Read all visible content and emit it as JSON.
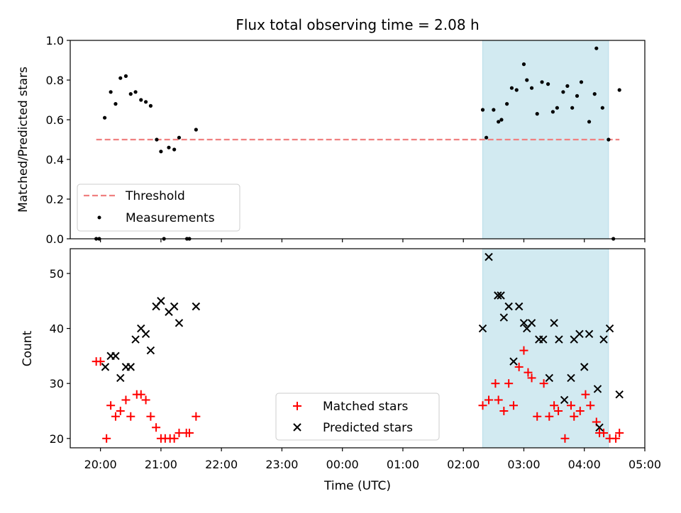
{
  "figure": {
    "title": "Flux total observing time = 2.08 h",
    "x_label": "Time (UTC)",
    "x_ticks": [
      "20:00",
      "21:00",
      "22:00",
      "23:00",
      "00:00",
      "01:00",
      "02:00",
      "03:00",
      "04:00",
      "05:00"
    ]
  },
  "chart_data": [
    {
      "type": "scatter",
      "ylabel": "Matched/Predicted stars",
      "xlim": [
        19.5,
        29.0
      ],
      "ylim": [
        0.0,
        1.0
      ],
      "yticks": [
        "0.0",
        "0.2",
        "0.4",
        "0.6",
        "0.8",
        "1.0"
      ],
      "shaded_span": {
        "x_start": 26.32,
        "x_end": 28.4,
        "color": "#add8e6"
      },
      "legend": {
        "placement": "lower-left",
        "entries": [
          "Threshold",
          "Measurements"
        ]
      },
      "threshold": {
        "name": "Threshold",
        "x_start": 19.93,
        "x_end": 28.58,
        "y": 0.5,
        "color": "#f08080"
      },
      "series": [
        {
          "name": "Measurements",
          "color": "#000000",
          "marker": "dot",
          "x": [
            19.93,
            19.98,
            20.07,
            20.17,
            20.25,
            20.33,
            20.42,
            20.5,
            20.58,
            20.67,
            20.75,
            20.83,
            20.93,
            21.0,
            21.05,
            21.13,
            21.22,
            21.3,
            21.43,
            21.47,
            21.58,
            26.32,
            26.38,
            26.5,
            26.58,
            26.63,
            26.72,
            26.8,
            26.88,
            27.0,
            27.05,
            27.13,
            27.22,
            27.3,
            27.4,
            27.48,
            27.55,
            27.65,
            27.72,
            27.8,
            27.88,
            27.95,
            28.08,
            28.17,
            28.2,
            28.3,
            28.4,
            28.48,
            28.58
          ],
          "y": [
            0.0,
            0.0,
            0.61,
            0.74,
            0.68,
            0.81,
            0.82,
            0.73,
            0.74,
            0.7,
            0.69,
            0.67,
            0.5,
            0.44,
            0.0,
            0.46,
            0.45,
            0.51,
            0.0,
            0.0,
            0.55,
            0.65,
            0.51,
            0.65,
            0.59,
            0.6,
            0.68,
            0.76,
            0.75,
            0.88,
            0.8,
            0.76,
            0.63,
            0.79,
            0.78,
            0.64,
            0.66,
            0.74,
            0.77,
            0.66,
            0.72,
            0.79,
            0.59,
            0.73,
            0.96,
            0.66,
            0.5,
            0.0,
            0.75
          ]
        }
      ]
    },
    {
      "type": "scatter",
      "ylabel": "Count",
      "xlim": [
        19.5,
        29.0
      ],
      "ylim": [
        18.3,
        54.5
      ],
      "yticks": [
        "20",
        "30",
        "40",
        "50"
      ],
      "shaded_span": {
        "x_start": 26.32,
        "x_end": 28.4,
        "color": "#add8e6"
      },
      "legend": {
        "placement": "lower-center",
        "entries": [
          "Matched stars",
          "Predicted stars"
        ]
      },
      "series": [
        {
          "name": "Matched stars",
          "color": "#ff0000",
          "marker": "plus",
          "x": [
            19.93,
            20.0,
            20.1,
            20.17,
            20.25,
            20.33,
            20.42,
            20.5,
            20.6,
            20.67,
            20.75,
            20.83,
            20.92,
            21.0,
            21.07,
            21.15,
            21.22,
            21.3,
            21.42,
            21.47,
            21.58,
            26.32,
            26.42,
            26.53,
            26.58,
            26.67,
            26.75,
            26.83,
            26.92,
            27.0,
            27.07,
            27.13,
            27.22,
            27.33,
            27.42,
            27.5,
            27.57,
            27.68,
            27.78,
            27.83,
            27.93,
            28.02,
            28.1,
            28.2,
            28.25,
            28.32,
            28.42,
            28.52,
            28.58
          ],
          "y": [
            34,
            34,
            20,
            26,
            24,
            25,
            27,
            24,
            28,
            28,
            27,
            24,
            22,
            20,
            20,
            20,
            20,
            21,
            21,
            21,
            24,
            26,
            27,
            30,
            27,
            25,
            30,
            26,
            33,
            36,
            32,
            31,
            24,
            30,
            24,
            26,
            25,
            20,
            26,
            24,
            25,
            28,
            26,
            23,
            21,
            21,
            20,
            20,
            21
          ]
        },
        {
          "name": "Predicted stars",
          "color": "#000000",
          "marker": "x",
          "x": [
            20.08,
            20.17,
            20.25,
            20.33,
            20.42,
            20.5,
            20.58,
            20.67,
            20.75,
            20.83,
            20.92,
            21.0,
            21.13,
            21.22,
            21.3,
            21.58,
            26.32,
            26.42,
            26.57,
            26.62,
            26.67,
            26.75,
            26.83,
            26.92,
            27.0,
            27.05,
            27.13,
            27.25,
            27.32,
            27.42,
            27.5,
            27.58,
            27.67,
            27.78,
            27.83,
            27.92,
            28.0,
            28.08,
            28.22,
            28.25,
            28.32,
            28.42,
            28.58
          ],
          "y": [
            33,
            35,
            35,
            31,
            33,
            33,
            38,
            40,
            39,
            36,
            44,
            45,
            43,
            44,
            41,
            44,
            40,
            53,
            46,
            46,
            42,
            44,
            34,
            44,
            41,
            40,
            41,
            38,
            38,
            31,
            41,
            38,
            27,
            31,
            38,
            39,
            33,
            39,
            29,
            22,
            38,
            40,
            28
          ]
        }
      ]
    }
  ]
}
